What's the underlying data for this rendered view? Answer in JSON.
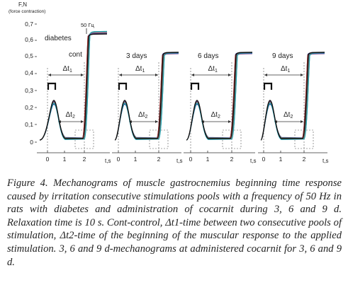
{
  "figure": {
    "y_axis_label_line1": "F,N",
    "y_axis_label_line2": "(force contraction)",
    "y_ticks": [
      "0,7",
      "0,6",
      "0,5",
      "0,4",
      "0,3",
      "0,2",
      "0,1",
      "0"
    ],
    "x_tick_labels": [
      "0",
      "1",
      "2"
    ],
    "x_axis_label": "t,s",
    "frequency_label": "50 Гц",
    "delta_t1": "Δt",
    "delta_t1_sub": "1",
    "delta_t2": "Δt",
    "delta_t2_sub": "2",
    "panels": [
      {
        "label_1": "diabetes",
        "label_2": "cont"
      },
      {
        "label_1": "3 days"
      },
      {
        "label_1": "6 days"
      },
      {
        "label_1": "9 days"
      }
    ],
    "trace_colors": [
      "#1f2a7a",
      "#2b6cb0",
      "#e07b2a",
      "#2e8b57",
      "#c0392b",
      "#6a3d9a",
      "#7f7f7f",
      "#17a2b8"
    ]
  },
  "caption": {
    "label": "Figure 4.",
    "text": " Mechanograms of muscle gastrocnemius beginning time response caused by irritation consecutive stimulations pools with a frequency of 50 Hz in rats with diabetes and administration of cocarnit during 3, 6 and 9 d. Relaxation time is 10 s. Cont-control, Δt1-time between two consecutive pools of stimulation, Δt2-time of the beginning of the muscular response to the applied stimulation. 3, 6 and 9 d-mechanograms at administered cocarnit for 3, 6 and 9 d."
  }
}
